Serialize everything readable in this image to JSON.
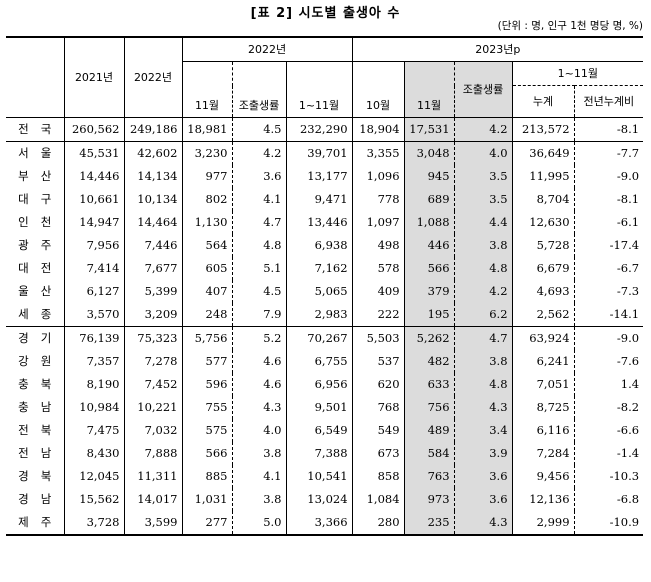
{
  "title": "[표 2] 시도별 출생아 수",
  "unit": "(단위 : 명, 인구 1천 명당 명, %)",
  "header": {
    "year2021": "2021년",
    "year2022": "2022년",
    "group2022": "2022년",
    "group2023": "2023년p",
    "sub_nov": "11월",
    "sub_cbr": "조출생률",
    "sub_janNov": "1~11월",
    "sub_oct": "10월",
    "sub_nov23": "11월",
    "sub_cbr23": "조출생률",
    "sub_janNov23": "1~11월",
    "sub_cum": "누계",
    "sub_yoy": "전년누계비"
  },
  "rows": [
    {
      "region": "전국",
      "y2021": "260,562",
      "y2022": "249,186",
      "nov22": "18,981",
      "cbr22": "4.5",
      "jn22": "232,290",
      "oct23": "18,904",
      "nov23": "17,531",
      "cbr23": "4.2",
      "cum23": "213,572",
      "yoy": "-8.1"
    },
    {
      "region": "서울",
      "y2021": "45,531",
      "y2022": "42,602",
      "nov22": "3,230",
      "cbr22": "4.2",
      "jn22": "39,701",
      "oct23": "3,355",
      "nov23": "3,048",
      "cbr23": "4.0",
      "cum23": "36,649",
      "yoy": "-7.7"
    },
    {
      "region": "부산",
      "y2021": "14,446",
      "y2022": "14,134",
      "nov22": "977",
      "cbr22": "3.6",
      "jn22": "13,177",
      "oct23": "1,096",
      "nov23": "945",
      "cbr23": "3.5",
      "cum23": "11,995",
      "yoy": "-9.0"
    },
    {
      "region": "대구",
      "y2021": "10,661",
      "y2022": "10,134",
      "nov22": "802",
      "cbr22": "4.1",
      "jn22": "9,471",
      "oct23": "778",
      "nov23": "689",
      "cbr23": "3.5",
      "cum23": "8,704",
      "yoy": "-8.1"
    },
    {
      "region": "인천",
      "y2021": "14,947",
      "y2022": "14,464",
      "nov22": "1,130",
      "cbr22": "4.7",
      "jn22": "13,446",
      "oct23": "1,097",
      "nov23": "1,088",
      "cbr23": "4.4",
      "cum23": "12,630",
      "yoy": "-6.1"
    },
    {
      "region": "광주",
      "y2021": "7,956",
      "y2022": "7,446",
      "nov22": "564",
      "cbr22": "4.8",
      "jn22": "6,938",
      "oct23": "498",
      "nov23": "446",
      "cbr23": "3.8",
      "cum23": "5,728",
      "yoy": "-17.4"
    },
    {
      "region": "대전",
      "y2021": "7,414",
      "y2022": "7,677",
      "nov22": "605",
      "cbr22": "5.1",
      "jn22": "7,162",
      "oct23": "578",
      "nov23": "566",
      "cbr23": "4.8",
      "cum23": "6,679",
      "yoy": "-6.7"
    },
    {
      "region": "울산",
      "y2021": "6,127",
      "y2022": "5,399",
      "nov22": "407",
      "cbr22": "4.5",
      "jn22": "5,065",
      "oct23": "409",
      "nov23": "379",
      "cbr23": "4.2",
      "cum23": "4,693",
      "yoy": "-7.3"
    },
    {
      "region": "세종",
      "y2021": "3,570",
      "y2022": "3,209",
      "nov22": "248",
      "cbr22": "7.9",
      "jn22": "2,983",
      "oct23": "222",
      "nov23": "195",
      "cbr23": "6.2",
      "cum23": "2,562",
      "yoy": "-14.1"
    },
    {
      "region": "경기",
      "y2021": "76,139",
      "y2022": "75,323",
      "nov22": "5,756",
      "cbr22": "5.2",
      "jn22": "70,267",
      "oct23": "5,503",
      "nov23": "5,262",
      "cbr23": "4.7",
      "cum23": "63,924",
      "yoy": "-9.0"
    },
    {
      "region": "강원",
      "y2021": "7,357",
      "y2022": "7,278",
      "nov22": "577",
      "cbr22": "4.6",
      "jn22": "6,755",
      "oct23": "537",
      "nov23": "482",
      "cbr23": "3.8",
      "cum23": "6,241",
      "yoy": "-7.6"
    },
    {
      "region": "충북",
      "y2021": "8,190",
      "y2022": "7,452",
      "nov22": "596",
      "cbr22": "4.6",
      "jn22": "6,956",
      "oct23": "620",
      "nov23": "633",
      "cbr23": "4.8",
      "cum23": "7,051",
      "yoy": "1.4"
    },
    {
      "region": "충남",
      "y2021": "10,984",
      "y2022": "10,221",
      "nov22": "755",
      "cbr22": "4.3",
      "jn22": "9,501",
      "oct23": "768",
      "nov23": "756",
      "cbr23": "4.3",
      "cum23": "8,725",
      "yoy": "-8.2"
    },
    {
      "region": "전북",
      "y2021": "7,475",
      "y2022": "7,032",
      "nov22": "575",
      "cbr22": "4.0",
      "jn22": "6,549",
      "oct23": "549",
      "nov23": "489",
      "cbr23": "3.4",
      "cum23": "6,116",
      "yoy": "-6.6"
    },
    {
      "region": "전남",
      "y2021": "8,430",
      "y2022": "7,888",
      "nov22": "566",
      "cbr22": "3.8",
      "jn22": "7,388",
      "oct23": "673",
      "nov23": "584",
      "cbr23": "3.9",
      "cum23": "7,284",
      "yoy": "-1.4"
    },
    {
      "region": "경북",
      "y2021": "12,045",
      "y2022": "11,311",
      "nov22": "885",
      "cbr22": "4.1",
      "jn22": "10,541",
      "oct23": "858",
      "nov23": "763",
      "cbr23": "3.6",
      "cum23": "9,456",
      "yoy": "-10.3"
    },
    {
      "region": "경남",
      "y2021": "15,562",
      "y2022": "14,017",
      "nov22": "1,031",
      "cbr22": "3.8",
      "jn22": "13,024",
      "oct23": "1,084",
      "nov23": "973",
      "cbr23": "3.6",
      "cum23": "12,136",
      "yoy": "-6.8"
    },
    {
      "region": "제주",
      "y2021": "3,728",
      "y2022": "3,599",
      "nov22": "277",
      "cbr22": "5.0",
      "jn22": "3,366",
      "oct23": "280",
      "nov23": "235",
      "cbr23": "4.3",
      "cum23": "2,999",
      "yoy": "-10.9"
    }
  ]
}
